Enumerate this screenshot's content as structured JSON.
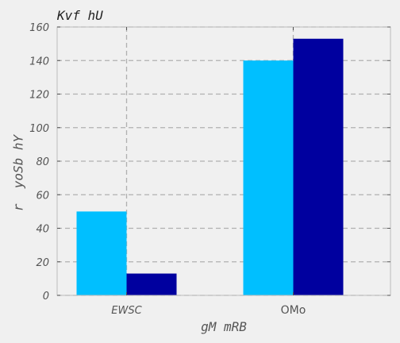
{
  "colors": {
    "background": "#f0f0f0",
    "plot_background": "#f0f0f0",
    "grid": "#b0b0b0",
    "axis": "#bcbcbc",
    "text": "#555555",
    "title_text": "#222222"
  },
  "chart_data": {
    "type": "bar",
    "title": "Kvf hU",
    "xlabel": "gM mRB",
    "ylabel": "r  yoSb hY",
    "categories": [
      "EWSC",
      "OMo"
    ],
    "category_italic": [
      true,
      false
    ],
    "series": [
      {
        "values": [
          50,
          140
        ],
        "color": "#00bfff"
      },
      {
        "values": [
          13,
          153
        ],
        "color": "#00009f"
      }
    ],
    "ylim": [
      0,
      160
    ],
    "yticks": [
      0,
      20,
      40,
      60,
      80,
      100,
      120,
      140,
      160
    ],
    "grid": true,
    "grid_style": "dashed",
    "legend": "none"
  }
}
